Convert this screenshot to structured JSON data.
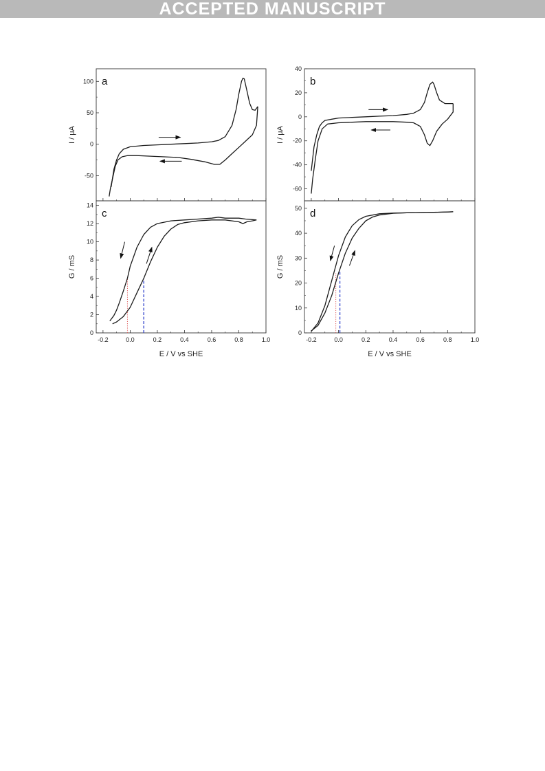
{
  "banner": {
    "text": "ACCEPTED MANUSCRIPT"
  },
  "chart_data": [
    {
      "panel": "a",
      "type": "line",
      "xlabel": "",
      "ylabel": "I / μA",
      "xlim": [
        -0.25,
        1.0
      ],
      "ylim": [
        -90,
        120
      ],
      "yticks": [
        -50,
        0,
        50,
        100
      ],
      "yticklabels": [
        "-50",
        "0",
        "50",
        "100"
      ],
      "series": [
        {
          "x": [
            -0.14,
            -0.12,
            -0.1,
            -0.08,
            -0.05,
            0.0,
            0.1,
            0.2,
            0.3,
            0.4,
            0.5,
            0.6,
            0.65,
            0.7,
            0.75,
            0.78,
            0.8,
            0.82,
            0.83,
            0.84,
            0.86,
            0.88,
            0.9,
            0.92,
            0.94
          ],
          "y": [
            -68,
            -40,
            -25,
            -15,
            -8,
            -4,
            -2,
            -1,
            0,
            1,
            2,
            4,
            6,
            12,
            30,
            55,
            80,
            100,
            105,
            104,
            85,
            65,
            55,
            54,
            60
          ]
        },
        {
          "x": [
            0.94,
            0.93,
            0.9,
            0.85,
            0.8,
            0.75,
            0.7,
            0.66,
            0.62,
            0.55,
            0.45,
            0.35,
            0.25,
            0.15,
            0.05,
            -0.02,
            -0.06,
            -0.09,
            -0.11,
            -0.13,
            -0.145,
            -0.155
          ],
          "y": [
            60,
            30,
            15,
            5,
            -5,
            -15,
            -25,
            -32,
            -32,
            -28,
            -24,
            -21,
            -20,
            -19,
            -18,
            -18,
            -20,
            -25,
            -35,
            -55,
            -70,
            -83
          ]
        }
      ],
      "annotations": [
        {
          "type": "arrow",
          "x1": 0.21,
          "y1": 11,
          "x2": 0.37,
          "y2": 11
        },
        {
          "type": "arrow",
          "x1": 0.38,
          "y1": -27,
          "x2": 0.22,
          "y2": -27
        }
      ]
    },
    {
      "panel": "b",
      "type": "line",
      "xlabel": "",
      "ylabel": "I / μA",
      "xlim": [
        -0.25,
        1.0
      ],
      "ylim": [
        -70,
        40
      ],
      "yticks": [
        -60,
        -40,
        -20,
        0,
        20,
        40
      ],
      "yticklabels": [
        "-60",
        "-40",
        "-20",
        "0",
        "20",
        "40"
      ],
      "series": [
        {
          "x": [
            -0.2,
            -0.19,
            -0.18,
            -0.16,
            -0.14,
            -0.12,
            -0.1,
            -0.05,
            0.0,
            0.1,
            0.2,
            0.3,
            0.4,
            0.5,
            0.55,
            0.6,
            0.63,
            0.65,
            0.67,
            0.69,
            0.7,
            0.72,
            0.74,
            0.78,
            0.82,
            0.84
          ],
          "y": [
            -45,
            -35,
            -25,
            -15,
            -8,
            -5,
            -3,
            -2,
            -1,
            -0.5,
            0,
            0.5,
            1,
            2,
            3,
            6,
            12,
            20,
            27,
            29,
            27,
            20,
            14,
            11,
            11,
            11
          ]
        },
        {
          "x": [
            0.84,
            0.84,
            0.8,
            0.76,
            0.72,
            0.69,
            0.67,
            0.65,
            0.63,
            0.6,
            0.55,
            0.5,
            0.4,
            0.3,
            0.2,
            0.1,
            0.0,
            -0.08,
            -0.12,
            -0.15,
            -0.17,
            -0.19,
            -0.2
          ],
          "y": [
            11,
            4,
            -2,
            -6,
            -12,
            -20,
            -24,
            -22,
            -15,
            -8,
            -5,
            -4.5,
            -4,
            -4,
            -4,
            -4.5,
            -5,
            -6,
            -10,
            -20,
            -35,
            -52,
            -64
          ]
        }
      ],
      "annotations": [
        {
          "type": "arrow",
          "x1": 0.22,
          "y1": 6,
          "x2": 0.36,
          "y2": 6
        },
        {
          "type": "arrow",
          "x1": 0.38,
          "y1": -11,
          "x2": 0.24,
          "y2": -11
        }
      ]
    },
    {
      "panel": "c",
      "type": "line",
      "xlabel": "E / V vs SHE",
      "ylabel": "G / mS",
      "xlim": [
        -0.25,
        1.0
      ],
      "ylim": [
        0,
        14.5
      ],
      "xticks": [
        -0.2,
        0.0,
        0.2,
        0.4,
        0.6,
        0.8,
        1.0
      ],
      "xticklabels": [
        "-0.2",
        "0.0",
        "0.2",
        "0.4",
        "0.6",
        "0.8",
        "1.0"
      ],
      "yticks": [
        0,
        2,
        4,
        6,
        8,
        10,
        12,
        14
      ],
      "yticklabels": [
        "0",
        "2",
        "4",
        "6",
        "8",
        "10",
        "12",
        "14"
      ],
      "series": [
        {
          "x": [
            -0.13,
            -0.1,
            -0.05,
            0.0,
            0.05,
            0.1,
            0.15,
            0.2,
            0.25,
            0.3,
            0.35,
            0.4,
            0.5,
            0.6,
            0.7,
            0.8,
            0.83,
            0.86,
            0.9,
            0.93
          ],
          "y": [
            1.0,
            1.2,
            1.8,
            2.8,
            4.4,
            6.0,
            7.8,
            9.4,
            10.6,
            11.4,
            11.9,
            12.1,
            12.3,
            12.4,
            12.4,
            12.2,
            12.0,
            12.2,
            12.3,
            12.4
          ]
        },
        {
          "x": [
            0.93,
            0.85,
            0.8,
            0.7,
            0.65,
            0.6,
            0.5,
            0.4,
            0.3,
            0.2,
            0.15,
            0.1,
            0.05,
            0.0,
            -0.02,
            -0.05,
            -0.08,
            -0.1,
            -0.12,
            -0.14,
            -0.15
          ],
          "y": [
            12.4,
            12.5,
            12.6,
            12.6,
            12.7,
            12.6,
            12.5,
            12.4,
            12.3,
            12.0,
            11.6,
            10.8,
            9.4,
            7.3,
            6.0,
            4.6,
            3.3,
            2.5,
            1.9,
            1.5,
            1.3
          ]
        }
      ],
      "reference_lines": [
        {
          "x": -0.02,
          "y_from": 0,
          "y_to": 6.0,
          "style": "dotted",
          "color": "#e06060"
        },
        {
          "x": 0.1,
          "y_from": 0,
          "y_to": 6.0,
          "style": "dashed",
          "color": "#3344cc"
        }
      ],
      "annotations": [
        {
          "type": "arrow",
          "x1": -0.04,
          "y1": 10.0,
          "x2": -0.07,
          "y2": 8.2
        },
        {
          "type": "arrow",
          "x1": 0.12,
          "y1": 7.6,
          "x2": 0.16,
          "y2": 9.4
        }
      ]
    },
    {
      "panel": "d",
      "type": "line",
      "xlabel": "E / V vs SHE",
      "ylabel": "G / mS",
      "xlim": [
        -0.25,
        1.0
      ],
      "ylim": [
        0,
        53
      ],
      "xticks": [
        -0.2,
        0.0,
        0.2,
        0.4,
        0.6,
        0.8,
        1.0
      ],
      "xticklabels": [
        "-0.2",
        "0.0",
        "0.2",
        "0.4",
        "0.6",
        "0.8",
        "1.0"
      ],
      "yticks": [
        0,
        10,
        20,
        30,
        40,
        50
      ],
      "yticklabels": [
        "0",
        "10",
        "20",
        "30",
        "40",
        "50"
      ],
      "series": [
        {
          "x": [
            -0.2,
            -0.15,
            -0.1,
            -0.05,
            0.0,
            0.05,
            0.1,
            0.15,
            0.2,
            0.25,
            0.3,
            0.4,
            0.5,
            0.6,
            0.7,
            0.8,
            0.84
          ],
          "y": [
            0.8,
            3,
            8,
            15,
            24,
            32,
            38,
            42,
            45,
            46.5,
            47.3,
            48,
            48.2,
            48.3,
            48.4,
            48.5,
            48.6
          ]
        },
        {
          "x": [
            0.84,
            0.7,
            0.6,
            0.5,
            0.4,
            0.3,
            0.2,
            0.15,
            0.1,
            0.05,
            0.0,
            -0.05,
            -0.1,
            -0.15,
            -0.2
          ],
          "y": [
            48.6,
            48.4,
            48.3,
            48.2,
            48.1,
            47.8,
            46.8,
            45.5,
            43,
            38.5,
            31,
            21,
            11,
            4,
            0.6
          ]
        }
      ],
      "reference_lines": [
        {
          "x": -0.02,
          "y_from": 0,
          "y_to": 24,
          "style": "dotted",
          "color": "#e06060"
        },
        {
          "x": 0.01,
          "y_from": 0,
          "y_to": 25,
          "style": "dashed",
          "color": "#3344cc"
        }
      ],
      "annotations": [
        {
          "type": "arrow",
          "x1": -0.03,
          "y1": 35,
          "x2": -0.06,
          "y2": 29
        },
        {
          "type": "arrow",
          "x1": 0.08,
          "y1": 27,
          "x2": 0.12,
          "y2": 33
        }
      ]
    }
  ]
}
